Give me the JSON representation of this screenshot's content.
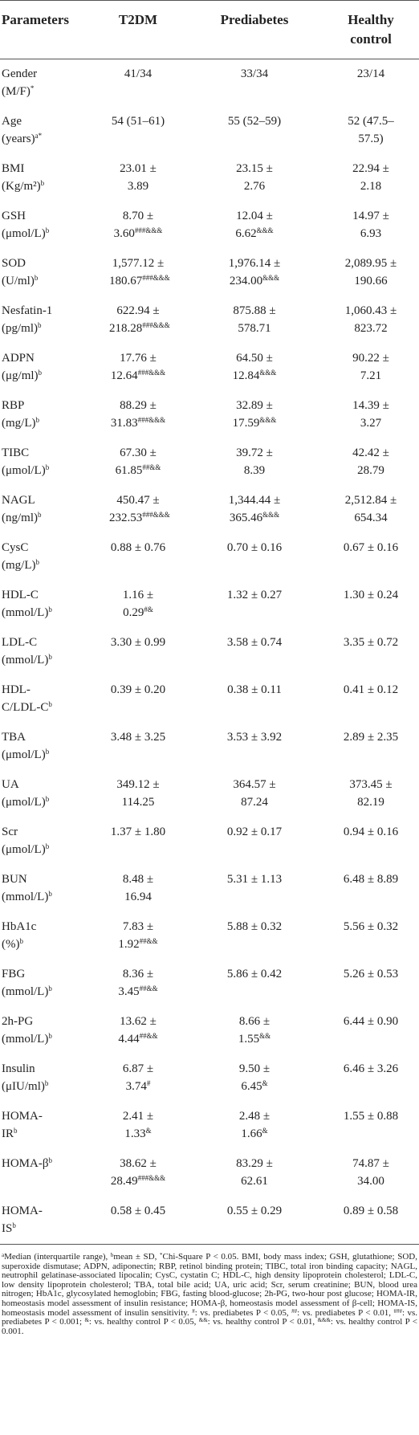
{
  "table": {
    "header": [
      "Parameters",
      "T2DM",
      "Prediabetes",
      "Healthy control"
    ],
    "rows": [
      {
        "param": {
          "text": "Gender (M/F)",
          "sup": "*"
        },
        "values": [
          {
            "text": "41/34"
          },
          {
            "text": "33/34"
          },
          {
            "text": "23/14"
          }
        ]
      },
      {
        "param": {
          "text": "Age (years)",
          "sup": "a*"
        },
        "values": [
          {
            "text": "54 (51–61)"
          },
          {
            "text": "55 (52–59)"
          },
          {
            "text": "52 (47.5–57.5)"
          }
        ]
      },
      {
        "param": {
          "text": "BMI (Kg/m²)",
          "sup": "b"
        },
        "values": [
          {
            "text": "23.01 ± 3.89"
          },
          {
            "text": "23.15 ± 2.76"
          },
          {
            "text": "22.94 ± 2.18"
          }
        ]
      },
      {
        "param": {
          "text": "GSH (μmol/L)",
          "sup": "b"
        },
        "values": [
          {
            "text": "8.70 ± 3.60",
            "sup": "###&&&"
          },
          {
            "text": "12.04 ± 6.62",
            "sup": "&&&"
          },
          {
            "text": "14.97 ± 6.93"
          }
        ]
      },
      {
        "param": {
          "text": "SOD (U/ml)",
          "sup": "b"
        },
        "values": [
          {
            "text": "1,577.12 ± 180.67",
            "sup": "###&&&"
          },
          {
            "text": "1,976.14 ± 234.00",
            "sup": "&&&"
          },
          {
            "text": "2,089.95 ± 190.66"
          }
        ]
      },
      {
        "param": {
          "text": "Nesfatin-1 (pg/ml)",
          "sup": "b"
        },
        "values": [
          {
            "text": "622.94 ± 218.28",
            "sup": "###&&&"
          },
          {
            "text": "875.88 ± 578.71"
          },
          {
            "text": "1,060.43 ± 823.72"
          }
        ]
      },
      {
        "param": {
          "text": "ADPN (μg/ml)",
          "sup": "b"
        },
        "values": [
          {
            "text": "17.76 ± 12.64",
            "sup": "###&&&"
          },
          {
            "text": "64.50 ± 12.84",
            "sup": "&&&"
          },
          {
            "text": "90.22 ± 7.21"
          }
        ]
      },
      {
        "param": {
          "text": "RBP (mg/L)",
          "sup": "b"
        },
        "values": [
          {
            "text": "88.29 ± 31.83",
            "sup": "###&&&"
          },
          {
            "text": "32.89 ± 17.59",
            "sup": "&&&"
          },
          {
            "text": "14.39 ± 3.27"
          }
        ]
      },
      {
        "param": {
          "text": "TIBC (μmol/L)",
          "sup": "b"
        },
        "values": [
          {
            "text": "67.30 ± 61.85",
            "sup": "##&&"
          },
          {
            "text": "39.72 ± 8.39"
          },
          {
            "text": "42.42 ± 28.79"
          }
        ]
      },
      {
        "param": {
          "text": "NAGL (ng/ml)",
          "sup": "b"
        },
        "values": [
          {
            "text": "450.47 ± 232.53",
            "sup": "###&&&"
          },
          {
            "text": "1,344.44 ± 365.46",
            "sup": "&&&"
          },
          {
            "text": "2,512.84 ± 654.34"
          }
        ]
      },
      {
        "param": {
          "text": "CysC (mg/L)",
          "sup": "b"
        },
        "values": [
          {
            "text": "0.88 ± 0.76"
          },
          {
            "text": "0.70 ± 0.16"
          },
          {
            "text": "0.67 ± 0.16"
          }
        ]
      },
      {
        "param": {
          "text": "HDL-C (mmol/L)",
          "sup": "b"
        },
        "values": [
          {
            "text": "1.16 ± 0.29",
            "sup": "#&"
          },
          {
            "text": "1.32 ± 0.27"
          },
          {
            "text": "1.30 ± 0.24"
          }
        ]
      },
      {
        "param": {
          "text": "LDL-C (mmol/L)",
          "sup": "b"
        },
        "values": [
          {
            "text": "3.30 ± 0.99"
          },
          {
            "text": "3.58 ± 0.74"
          },
          {
            "text": "3.35 ± 0.72"
          }
        ]
      },
      {
        "param": {
          "text": "HDL-C/LDL-C",
          "sup": "b"
        },
        "values": [
          {
            "text": "0.39 ± 0.20"
          },
          {
            "text": "0.38 ± 0.11"
          },
          {
            "text": "0.41 ± 0.12"
          }
        ]
      },
      {
        "param": {
          "text": "TBA (μmol/L)",
          "sup": "b"
        },
        "values": [
          {
            "text": "3.48 ± 3.25"
          },
          {
            "text": "3.53 ± 3.92"
          },
          {
            "text": "2.89 ± 2.35"
          }
        ]
      },
      {
        "param": {
          "text": "UA (μmol/L)",
          "sup": "b"
        },
        "values": [
          {
            "text": "349.12 ± 114.25"
          },
          {
            "text": "364.57 ± 87.24"
          },
          {
            "text": "373.45 ± 82.19"
          }
        ]
      },
      {
        "param": {
          "text": "Scr (μmol/L)",
          "sup": "b"
        },
        "values": [
          {
            "text": "1.37 ± 1.80"
          },
          {
            "text": "0.92 ± 0.17"
          },
          {
            "text": "0.94 ± 0.16"
          }
        ]
      },
      {
        "param": {
          "text": "BUN (mmol/L)",
          "sup": "b"
        },
        "values": [
          {
            "text": "8.48 ± 16.94"
          },
          {
            "text": "5.31 ± 1.13"
          },
          {
            "text": "6.48 ± 8.89"
          }
        ]
      },
      {
        "param": {
          "text": "HbA1c (%)",
          "sup": "b"
        },
        "values": [
          {
            "text": "7.83 ± 1.92",
            "sup": "##&&"
          },
          {
            "text": "5.88 ± 0.32"
          },
          {
            "text": "5.56 ± 0.32"
          }
        ]
      },
      {
        "param": {
          "text": "FBG (mmol/L)",
          "sup": "b"
        },
        "values": [
          {
            "text": "8.36 ± 3.45",
            "sup": "##&&"
          },
          {
            "text": "5.86 ± 0.42"
          },
          {
            "text": "5.26 ± 0.53"
          }
        ]
      },
      {
        "param": {
          "text": "2h-PG (mmol/L)",
          "sup": "b"
        },
        "values": [
          {
            "text": "13.62 ± 4.44",
            "sup": "##&&"
          },
          {
            "text": "8.66 ± 1.55",
            "sup": "&&"
          },
          {
            "text": "6.44 ± 0.90"
          }
        ]
      },
      {
        "param": {
          "text": "Insulin (μIU/ml)",
          "sup": "b"
        },
        "values": [
          {
            "text": "6.87 ± 3.74",
            "sup": "#"
          },
          {
            "text": "9.50 ± 6.45",
            "sup": "&"
          },
          {
            "text": "6.46 ± 3.26"
          }
        ]
      },
      {
        "param": {
          "text": "HOMA-IR",
          "sup": "b"
        },
        "values": [
          {
            "text": "2.41 ± 1.33",
            "sup": "&"
          },
          {
            "text": "2.48 ± 1.66",
            "sup": "&"
          },
          {
            "text": "1.55 ± 0.88"
          }
        ]
      },
      {
        "param": {
          "text": "HOMA-β",
          "sup": "b"
        },
        "values": [
          {
            "text": "38.62 ± 28.49",
            "sup": "###&&&"
          },
          {
            "text": "83.29 ± 62.61"
          },
          {
            "text": "74.87 ± 34.00"
          }
        ]
      },
      {
        "param": {
          "text": "HOMA-IS",
          "sup": "b"
        },
        "values": [
          {
            "text": "0.58 ± 0.45"
          },
          {
            "text": "0.55 ± 0.29"
          },
          {
            "text": "0.89 ± 0.58"
          }
        ]
      }
    ]
  },
  "footnote": [
    {
      "sup": "a"
    },
    {
      "text": "Median (interquartile range), "
    },
    {
      "sup": "b"
    },
    {
      "text": "mean ± SD, "
    },
    {
      "sup": "*"
    },
    {
      "text": "Chi-Square P < 0.05. BMI, body mass index; GSH, glutathione; SOD, superoxide dismutase; ADPN, adiponectin; RBP, retinol binding protein; TIBC, total iron binding capacity; NAGL, neutrophil gelatinase-associated lipocalin; CysC, cystatin C; HDL-C, high density lipoprotein cholesterol; LDL-C, low density lipoprotein cholesterol; TBA, total bile acid; UA, uric acid; Scr, serum creatinine; BUN, blood urea nitrogen; HbA1c, glycosylated hemoglobin; FBG, fasting blood-glucose; 2h-PG, two-hour post glucose; HOMA-IR, homeostasis model assessment of insulin resistance; HOMA-β, homeostasis model assessment of β-cell; HOMA-IS, homeostasis model assessment of insulin sensitivity. "
    },
    {
      "sup": "#"
    },
    {
      "text": ": vs. prediabetes P < 0.05, "
    },
    {
      "sup": "##"
    },
    {
      "text": ": vs. prediabetes P < 0.01, "
    },
    {
      "sup": "###"
    },
    {
      "text": ": vs. prediabetes P < 0.001; "
    },
    {
      "sup": "&"
    },
    {
      "text": ": vs. healthy control P < 0.05, "
    },
    {
      "sup": "&&"
    },
    {
      "text": ": vs. healthy control P < 0.01, "
    },
    {
      "sup": "&&&"
    },
    {
      "text": ": vs. healthy control P < 0.001."
    }
  ]
}
